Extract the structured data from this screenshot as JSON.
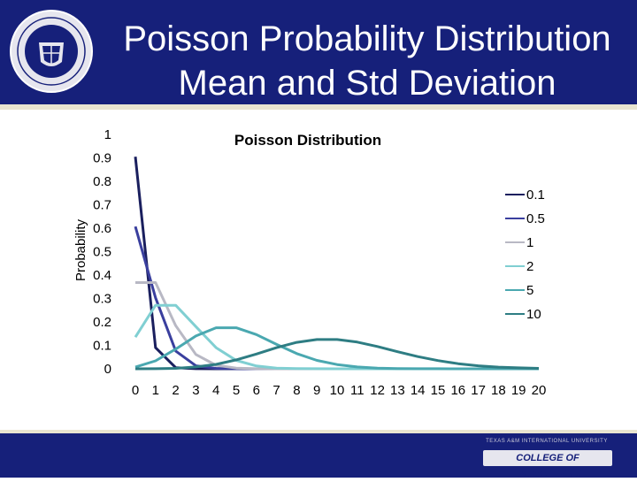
{
  "slide": {
    "title_line1": "Poisson Probability Distribution",
    "title_line2": "Mean and Std Deviation",
    "footer_small_text": "TEXAS A&M INTERNATIONAL UNIVERSITY",
    "footer_logo_text": "COLLEGE OF ENGINEERING"
  },
  "colors": {
    "header_bg": "#16207a",
    "series_0_1": "#1a1f5e",
    "series_0_5": "#3a3f9e",
    "series_1": "#b8b8c4",
    "series_2": "#80cfd2",
    "series_5": "#4aa8b0",
    "series_10": "#2e7d83"
  },
  "chart_data": {
    "type": "line",
    "title": "Poisson Distribution",
    "xlabel": "",
    "ylabel": "Probability",
    "x": [
      0,
      1,
      2,
      3,
      4,
      5,
      6,
      7,
      8,
      9,
      10,
      11,
      12,
      13,
      14,
      15,
      16,
      17,
      18,
      19,
      20
    ],
    "yticks": [
      "0",
      "0.1",
      "0.2",
      "0.3",
      "0.4",
      "0.5",
      "0.6",
      "0.7",
      "0.8",
      "0.9",
      "1"
    ],
    "ylim": [
      0,
      1
    ],
    "legend_position": "right",
    "grid": false,
    "series": [
      {
        "name": "0.1",
        "color": "#1a1f5e",
        "values": [
          0.905,
          0.09,
          0.005,
          0.0002,
          0,
          0,
          0,
          0,
          0,
          0,
          0,
          0,
          0,
          0,
          0,
          0,
          0,
          0,
          0,
          0,
          0
        ]
      },
      {
        "name": "0.5",
        "color": "#3a3f9e",
        "values": [
          0.607,
          0.303,
          0.076,
          0.013,
          0.002,
          0.0002,
          0,
          0,
          0,
          0,
          0,
          0,
          0,
          0,
          0,
          0,
          0,
          0,
          0,
          0,
          0
        ]
      },
      {
        "name": "1",
        "color": "#b8b8c4",
        "values": [
          0.368,
          0.368,
          0.184,
          0.061,
          0.015,
          0.003,
          0.0005,
          0.0001,
          0,
          0,
          0,
          0,
          0,
          0,
          0,
          0,
          0,
          0,
          0,
          0,
          0
        ]
      },
      {
        "name": "2",
        "color": "#80cfd2",
        "values": [
          0.135,
          0.271,
          0.271,
          0.18,
          0.09,
          0.036,
          0.012,
          0.003,
          0.001,
          0.0002,
          0,
          0,
          0,
          0,
          0,
          0,
          0,
          0,
          0,
          0,
          0
        ]
      },
      {
        "name": "5",
        "color": "#4aa8b0",
        "values": [
          0.007,
          0.034,
          0.084,
          0.14,
          0.175,
          0.175,
          0.146,
          0.104,
          0.065,
          0.036,
          0.018,
          0.008,
          0.003,
          0.001,
          0.0005,
          0.0002,
          0,
          0,
          0,
          0,
          0
        ]
      },
      {
        "name": "10",
        "color": "#2e7d83",
        "values": [
          5e-05,
          0.0005,
          0.002,
          0.008,
          0.019,
          0.038,
          0.063,
          0.09,
          0.113,
          0.125,
          0.125,
          0.114,
          0.095,
          0.073,
          0.052,
          0.035,
          0.022,
          0.013,
          0.007,
          0.004,
          0.002
        ]
      }
    ]
  }
}
